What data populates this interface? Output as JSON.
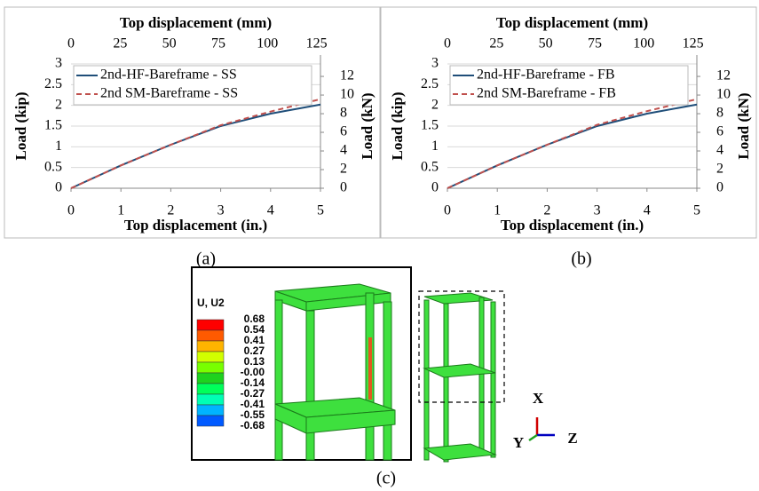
{
  "chart_data": [
    {
      "type": "line",
      "xlabel": "Top displacement (in.)",
      "x2label": "Top displacement (mm)",
      "ylabel": "Load (kip)",
      "y2label": "Load (kN)",
      "x": [
        0,
        1,
        2,
        3,
        4,
        5
      ],
      "xlim": [
        0,
        5
      ],
      "xticks": [
        0,
        1,
        2,
        3,
        4,
        5
      ],
      "x2lim": [
        0,
        127
      ],
      "x2ticks": [
        0,
        25,
        50,
        75,
        100,
        125
      ],
      "ylim": [
        0,
        3
      ],
      "yticks": [
        0,
        0.5,
        1,
        1.5,
        2,
        2.5,
        3
      ],
      "y2lim": [
        0,
        13.34
      ],
      "y2ticks": [
        0,
        2,
        4,
        6,
        8,
        10,
        12
      ],
      "grid": true,
      "legend": "upper left",
      "series": [
        {
          "name": "2nd-HF-Bareframe - SS",
          "color": "#1f4e79",
          "dash": false,
          "values": [
            0,
            0.55,
            1.05,
            1.5,
            1.8,
            2.02
          ]
        },
        {
          "name": "2nd SM-Bareframe - SS",
          "color": "#c0504d",
          "dash": true,
          "values": [
            0,
            0.55,
            1.05,
            1.52,
            1.85,
            2.15
          ]
        }
      ]
    },
    {
      "type": "line",
      "xlabel": "Top displacement (in.)",
      "x2label": "Top displacement (mm)",
      "ylabel": "Load (kip)",
      "y2label": "Load (kN)",
      "x": [
        0,
        1,
        2,
        3,
        4,
        5
      ],
      "xlim": [
        0,
        5
      ],
      "xticks": [
        0,
        1,
        2,
        3,
        4,
        5
      ],
      "x2lim": [
        0,
        127
      ],
      "x2ticks": [
        0,
        25,
        50,
        75,
        100,
        125
      ],
      "ylim": [
        0,
        3
      ],
      "yticks": [
        0,
        0.5,
        1,
        1.5,
        2,
        2.5,
        3
      ],
      "y2lim": [
        0,
        13.34
      ],
      "y2ticks": [
        0,
        2,
        4,
        6,
        8,
        10,
        12
      ],
      "grid": true,
      "legend": "upper left",
      "series": [
        {
          "name": "2nd-HF-Bareframe - FB",
          "color": "#1f4e79",
          "dash": false,
          "values": [
            0,
            0.55,
            1.05,
            1.5,
            1.8,
            2.02
          ]
        },
        {
          "name": "2nd SM-Bareframe - FB",
          "color": "#c0504d",
          "dash": true,
          "values": [
            0,
            0.55,
            1.05,
            1.53,
            1.86,
            2.15
          ]
        }
      ]
    }
  ],
  "panel_labels": [
    "(a)",
    "(b)",
    "(c)"
  ],
  "contour_legend": {
    "title": "U, U2",
    "labels": [
      "0.68",
      "0.54",
      "0.41",
      "0.27",
      "0.13",
      "-0.00",
      "-0.14",
      "-0.27",
      "-0.41",
      "-0.55",
      "-0.68"
    ],
    "colors": [
      "#ff0000",
      "#ff5a00",
      "#ffb400",
      "#d2ff00",
      "#78ff00",
      "#1ed21e",
      "#00ff5a",
      "#00ffb4",
      "#00b4ff",
      "#005aff",
      "#0000ff"
    ]
  },
  "triad": {
    "x": "X",
    "y": "Y",
    "z": "Z"
  }
}
